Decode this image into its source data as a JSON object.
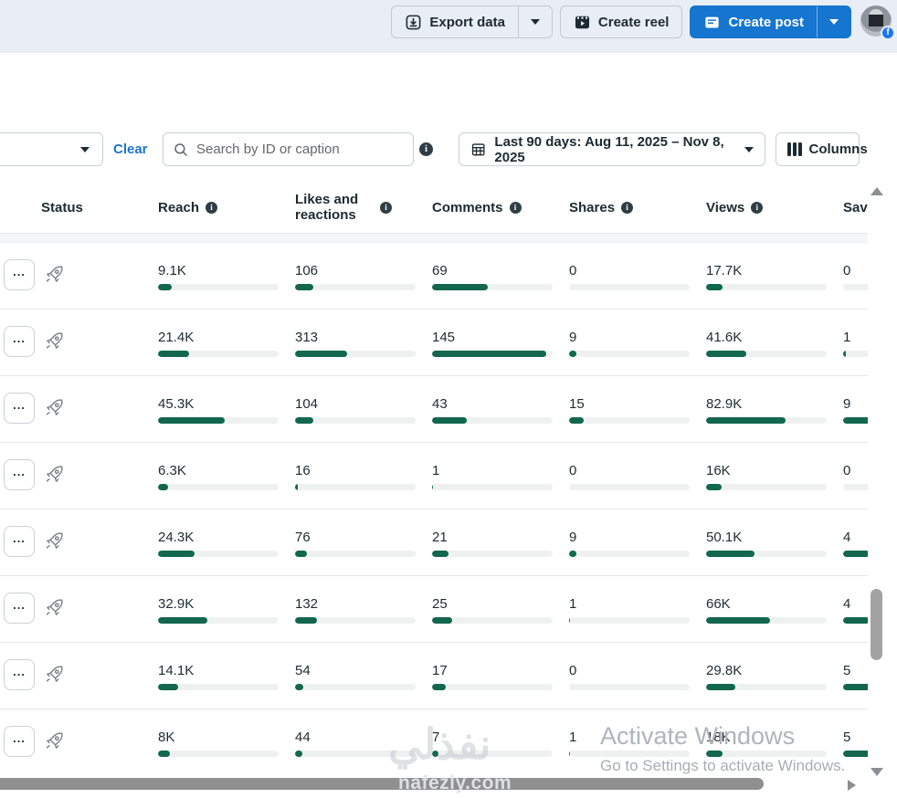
{
  "topbar": {
    "export_label": "Export data",
    "create_reel_label": "Create reel",
    "create_post_label": "Create post"
  },
  "filters": {
    "clear_label": "Clear",
    "search_placeholder": "Search by ID or caption",
    "date_range_label": "Last 90 days: Aug 11, 2025 – Nov 8, 2025",
    "columns_label": "Columns"
  },
  "table": {
    "headers": {
      "status": "Status",
      "reach": "Reach",
      "likes": "Likes and reactions",
      "comments": "Comments",
      "shares": "Shares",
      "views": "Views",
      "saves": "Saves"
    },
    "rows": [
      {
        "metrics": [
          {
            "v": "9.1K",
            "pct": 11
          },
          {
            "v": "106",
            "pct": 15
          },
          {
            "v": "69",
            "pct": 46
          },
          {
            "v": "0",
            "pct": 0
          },
          {
            "v": "17.7K",
            "pct": 14
          },
          {
            "v": "0",
            "pct": 0
          }
        ]
      },
      {
        "metrics": [
          {
            "v": "21.4K",
            "pct": 26
          },
          {
            "v": "313",
            "pct": 43
          },
          {
            "v": "145",
            "pct": 95
          },
          {
            "v": "9",
            "pct": 6
          },
          {
            "v": "41.6K",
            "pct": 33
          },
          {
            "v": "1",
            "pct": 2
          }
        ]
      },
      {
        "metrics": [
          {
            "v": "45.3K",
            "pct": 55
          },
          {
            "v": "104",
            "pct": 15
          },
          {
            "v": "43",
            "pct": 29
          },
          {
            "v": "15",
            "pct": 12
          },
          {
            "v": "82.9K",
            "pct": 66
          },
          {
            "v": "9",
            "pct": 50
          }
        ]
      },
      {
        "metrics": [
          {
            "v": "6.3K",
            "pct": 8
          },
          {
            "v": "16",
            "pct": 2
          },
          {
            "v": "1",
            "pct": 1
          },
          {
            "v": "0",
            "pct": 0
          },
          {
            "v": "16K",
            "pct": 13
          },
          {
            "v": "0",
            "pct": 0
          }
        ]
      },
      {
        "metrics": [
          {
            "v": "24.3K",
            "pct": 30
          },
          {
            "v": "76",
            "pct": 10
          },
          {
            "v": "21",
            "pct": 14
          },
          {
            "v": "9",
            "pct": 6
          },
          {
            "v": "50.1K",
            "pct": 40
          },
          {
            "v": "4",
            "pct": 22
          }
        ]
      },
      {
        "metrics": [
          {
            "v": "32.9K",
            "pct": 41
          },
          {
            "v": "132",
            "pct": 18
          },
          {
            "v": "25",
            "pct": 17
          },
          {
            "v": "1",
            "pct": 1
          },
          {
            "v": "66K",
            "pct": 53
          },
          {
            "v": "4",
            "pct": 22
          }
        ]
      },
      {
        "metrics": [
          {
            "v": "14.1K",
            "pct": 17
          },
          {
            "v": "54",
            "pct": 7
          },
          {
            "v": "17",
            "pct": 11
          },
          {
            "v": "0",
            "pct": 0
          },
          {
            "v": "29.8K",
            "pct": 24
          },
          {
            "v": "5",
            "pct": 28
          }
        ]
      },
      {
        "metrics": [
          {
            "v": "8K",
            "pct": 10
          },
          {
            "v": "44",
            "pct": 6
          },
          {
            "v": "7",
            "pct": 5
          },
          {
            "v": "1",
            "pct": 1
          },
          {
            "v": "18K",
            "pct": 14
          },
          {
            "v": "5",
            "pct": 28
          }
        ]
      }
    ]
  },
  "overlays": {
    "watermark_arabic": "نفذلي",
    "watermark_latin": "nafezly.com",
    "activate_line1": "Activate Windows",
    "activate_line2": "Go to Settings to activate Windows."
  },
  "colors": {
    "accent_blue": "#1675ce",
    "link_blue": "#1a74ce",
    "bar_green": "#12674d",
    "bar_track": "#eff1f1",
    "topbar_bg": "#e9edf5",
    "facebook_badge": "#1877f2"
  }
}
